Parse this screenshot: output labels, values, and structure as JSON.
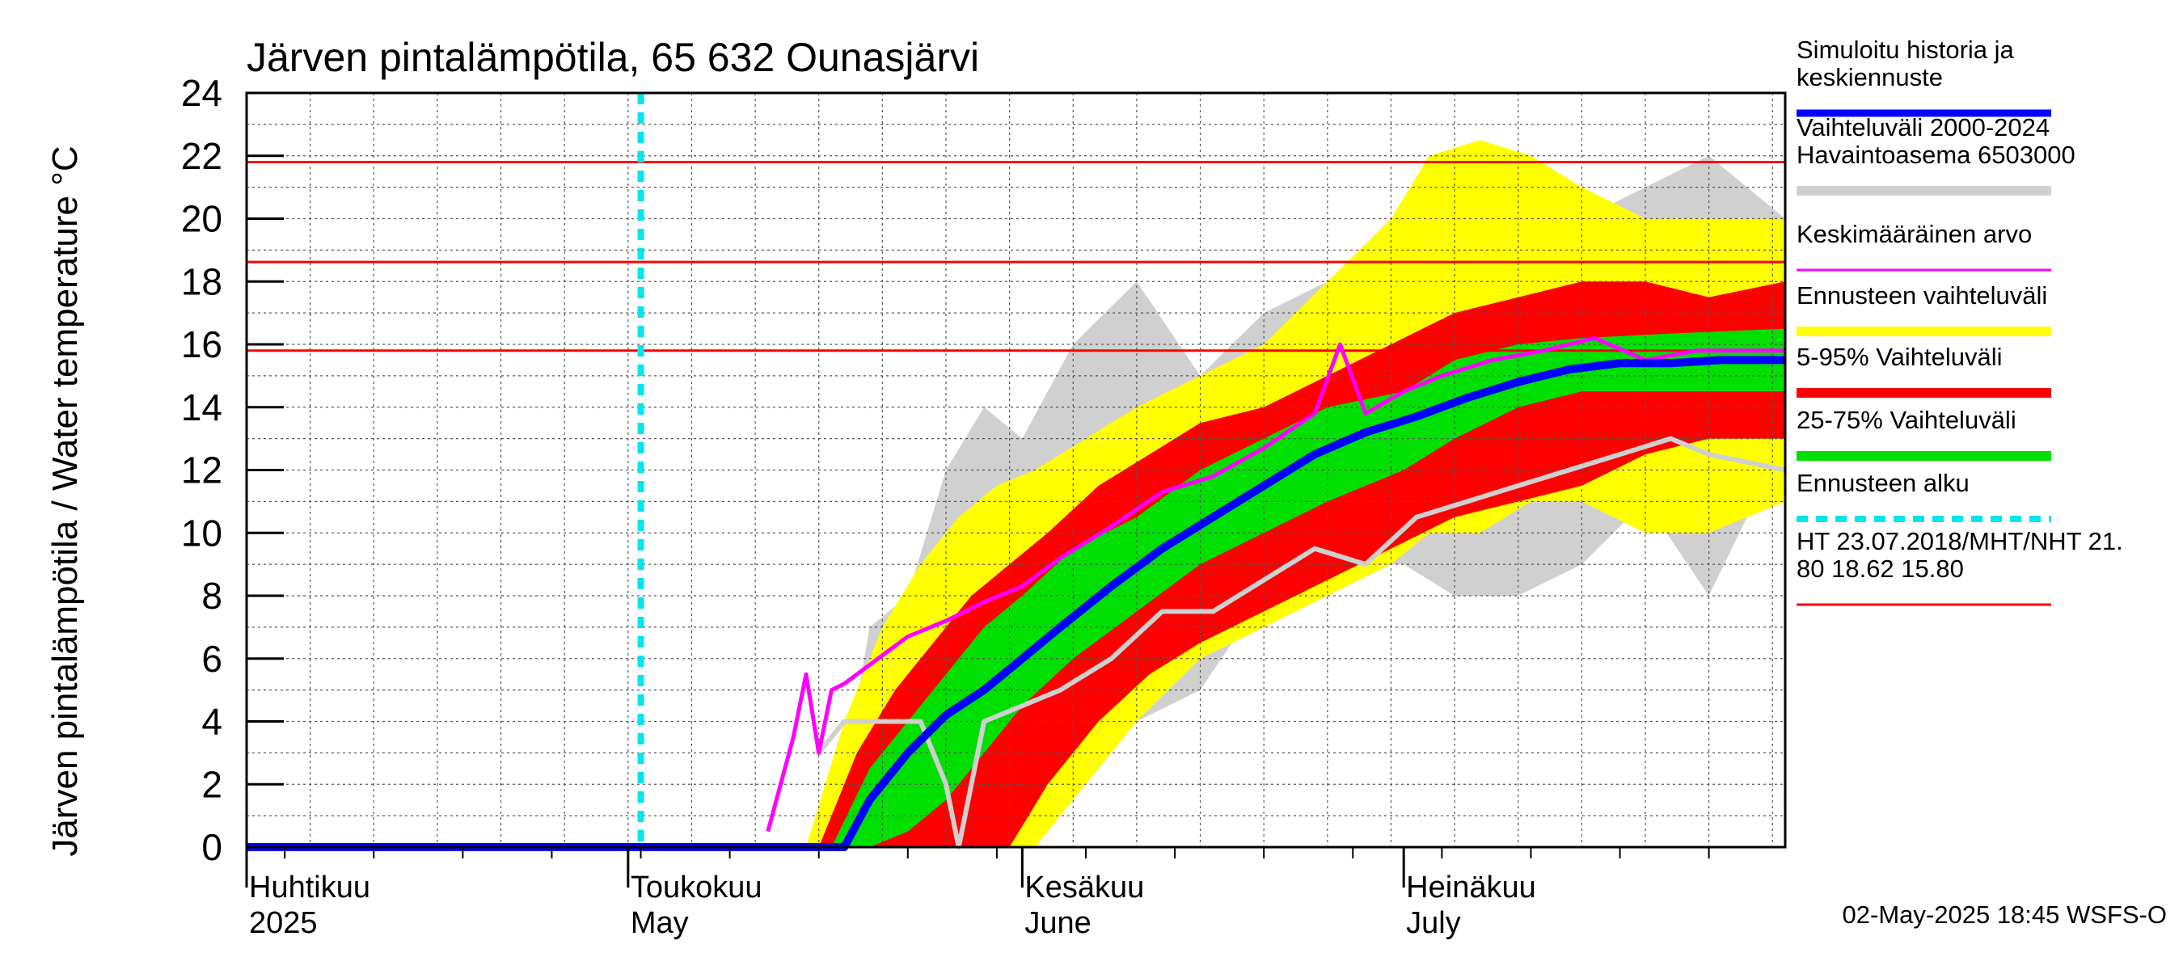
{
  "chart_data": {
    "type": "area",
    "title": "Järven pintalämpötila, 65 632 Ounasjärvi",
    "ylabel": "Järven pintalämpötila / Water temperature °C",
    "ylim": [
      0,
      24
    ],
    "yticks": [
      0,
      2,
      4,
      6,
      8,
      10,
      12,
      14,
      16,
      18,
      20,
      22,
      24
    ],
    "xlim": [
      "2025-04-01",
      "2025-07-31"
    ],
    "x_unit": "date",
    "grid": true,
    "month_labels": [
      {
        "date": "2025-04-01",
        "fi": "Huhtikuu",
        "en": "2025"
      },
      {
        "date": "2025-05-01",
        "fi": "Toukokuu",
        "en": "May"
      },
      {
        "date": "2025-06-01",
        "fi": "Kesäkuu",
        "en": "June"
      },
      {
        "date": "2025-07-01",
        "fi": "Heinäkuu",
        "en": "July"
      }
    ],
    "forecast_start": "2025-05-02",
    "reference_lines": [
      21.8,
      18.62,
      15.8
    ],
    "footer": "02-May-2025 18:45 WSFS-O",
    "colors": {
      "history_range": "#d0d0d0",
      "forecast_range": "#ffff00",
      "p5_95": "#ff0000",
      "p25_75": "#00e000",
      "simulated": "#0000ff",
      "mean": "#ff00ff",
      "forecast_start": "#00e5ee",
      "reference": "#ff0000"
    },
    "legend": [
      {
        "label": "Simuloitu historia ja\nkeskiennuste",
        "color": "#0000ff",
        "kind": "line"
      },
      {
        "label": "Vaihteluväli 2000-2024\n Havaintoasema 6503000",
        "color": "#d0d0d0",
        "kind": "band"
      },
      {
        "label": "Keskimääräinen arvo",
        "color": "#ff00ff",
        "kind": "line"
      },
      {
        "label": "Ennusteen vaihteluväli",
        "color": "#ffff00",
        "kind": "band"
      },
      {
        "label": "5-95% Vaihteluväli",
        "color": "#ff0000",
        "kind": "band"
      },
      {
        "label": "25-75% Vaihteluväli",
        "color": "#00e000",
        "kind": "band"
      },
      {
        "label": "Ennusteen alku",
        "color": "#00e5ee",
        "kind": "dashed"
      },
      {
        "label": "HT 23.07.2018/MHT/NHT 21.\n80 18.62 15.80",
        "color": "#ff0000",
        "kind": "line"
      }
    ],
    "series": [
      {
        "name": "Vaihteluväli 2000-2024 Havaintoasema 6503000",
        "kind": "band",
        "x": [
          "2025-05-17",
          "2025-05-20",
          "2025-05-23",
          "2025-05-26",
          "2025-05-29",
          "2025-06-01",
          "2025-06-05",
          "2025-06-10",
          "2025-06-15",
          "2025-06-20",
          "2025-06-25",
          "2025-07-01",
          "2025-07-05",
          "2025-07-10",
          "2025-07-15",
          "2025-07-20",
          "2025-07-25",
          "2025-07-31"
        ],
        "low": [
          0,
          3,
          4,
          4,
          0,
          3,
          4,
          4,
          5,
          8,
          9,
          9,
          8,
          8,
          9,
          11,
          8,
          13
        ],
        "high": [
          0,
          7,
          8,
          12,
          14,
          13,
          16,
          18,
          15,
          17,
          18,
          18,
          19,
          20,
          20,
          21,
          22,
          20
        ]
      },
      {
        "name": "Ennusteen vaihteluväli",
        "kind": "band",
        "x": [
          "2025-05-15",
          "2025-05-18",
          "2025-05-21",
          "2025-05-24",
          "2025-05-27",
          "2025-05-30",
          "2025-06-02",
          "2025-06-06",
          "2025-06-10",
          "2025-06-15",
          "2025-06-20",
          "2025-06-25",
          "2025-06-30",
          "2025-07-03",
          "2025-07-07",
          "2025-07-11",
          "2025-07-15",
          "2025-07-20",
          "2025-07-25",
          "2025-07-31"
        ],
        "low": [
          0,
          0,
          0,
          0,
          0,
          0,
          0,
          2,
          4,
          6,
          7,
          8,
          9,
          10,
          10,
          11,
          11,
          10,
          10,
          11
        ],
        "high": [
          0,
          4,
          7,
          9,
          10.5,
          11.5,
          12,
          13,
          14,
          15,
          16,
          18,
          20,
          22,
          22.5,
          22,
          21,
          20,
          20,
          20
        ]
      },
      {
        "name": "5-95% Vaihteluväli",
        "kind": "band",
        "x": [
          "2025-05-16",
          "2025-05-19",
          "2025-05-22",
          "2025-05-25",
          "2025-05-28",
          "2025-05-31",
          "2025-06-03",
          "2025-06-07",
          "2025-06-11",
          "2025-06-15",
          "2025-06-20",
          "2025-06-25",
          "2025-06-30",
          "2025-07-05",
          "2025-07-10",
          "2025-07-15",
          "2025-07-20",
          "2025-07-25",
          "2025-07-31"
        ],
        "low": [
          0,
          0,
          0,
          0,
          0,
          0,
          2,
          4,
          5.5,
          6.5,
          7.5,
          8.5,
          9.5,
          10.5,
          11,
          11.5,
          12.5,
          13,
          13
        ],
        "high": [
          0,
          3,
          5,
          6.5,
          8,
          9,
          10,
          11.5,
          12.5,
          13.5,
          14,
          15,
          16,
          17,
          17.5,
          18,
          18,
          17.5,
          18
        ]
      },
      {
        "name": "25-75% Vaihteluväli",
        "kind": "band",
        "x": [
          "2025-05-17",
          "2025-05-20",
          "2025-05-23",
          "2025-05-26",
          "2025-05-29",
          "2025-06-01",
          "2025-06-05",
          "2025-06-10",
          "2025-06-15",
          "2025-06-20",
          "2025-06-25",
          "2025-07-01",
          "2025-07-05",
          "2025-07-10",
          "2025-07-15",
          "2025-07-20",
          "2025-07-25",
          "2025-07-31"
        ],
        "low": [
          0,
          0,
          0.5,
          1.5,
          3,
          4.5,
          6,
          7.5,
          9,
          10,
          11,
          12,
          13,
          14,
          14.5,
          14.5,
          14.5,
          14.5
        ],
        "high": [
          0,
          2.5,
          4,
          5.5,
          7,
          8,
          9.5,
          10.5,
          12,
          13,
          14,
          14.5,
          15.5,
          16,
          16.2,
          16.3,
          16.4,
          16.5
        ]
      },
      {
        "name": "Simuloitu historia ja keskiennuste",
        "kind": "line",
        "x": [
          "2025-04-01",
          "2025-05-18",
          "2025-05-20",
          "2025-05-23",
          "2025-05-26",
          "2025-05-29",
          "2025-06-01",
          "2025-06-04",
          "2025-06-08",
          "2025-06-12",
          "2025-06-16",
          "2025-06-20",
          "2025-06-24",
          "2025-06-28",
          "2025-07-02",
          "2025-07-06",
          "2025-07-10",
          "2025-07-14",
          "2025-07-18",
          "2025-07-22",
          "2025-07-26",
          "2025-07-31"
        ],
        "y": [
          0,
          0,
          1.5,
          3,
          4.2,
          5,
          6,
          7,
          8.3,
          9.5,
          10.5,
          11.5,
          12.5,
          13.2,
          13.7,
          14.3,
          14.8,
          15.2,
          15.4,
          15.4,
          15.5,
          15.5
        ]
      },
      {
        "name": "Keskimääräinen arvo",
        "kind": "line",
        "x": [
          "2025-05-12",
          "2025-05-13",
          "2025-05-14",
          "2025-05-15",
          "2025-05-16",
          "2025-05-17",
          "2025-05-18",
          "2025-05-20",
          "2025-05-23",
          "2025-05-26",
          "2025-05-29",
          "2025-06-01",
          "2025-06-04",
          "2025-06-08",
          "2025-06-12",
          "2025-06-16",
          "2025-06-20",
          "2025-06-24",
          "2025-06-26",
          "2025-06-28",
          "2025-07-01",
          "2025-07-04",
          "2025-07-08",
          "2025-07-12",
          "2025-07-16",
          "2025-07-20",
          "2025-07-24",
          "2025-07-28",
          "2025-07-31"
        ],
        "y": [
          0.5,
          2,
          3.5,
          5.5,
          3,
          5,
          5.2,
          5.8,
          6.7,
          7.2,
          7.8,
          8.3,
          9.2,
          10.2,
          11.3,
          11.8,
          12.7,
          13.8,
          16,
          13.8,
          14.5,
          15,
          15.5,
          15.8,
          16.2,
          15.5,
          15.8,
          15.8,
          15.8
        ]
      },
      {
        "name": "Havaintoasema 6503000",
        "kind": "line",
        "x": [
          "2025-05-16",
          "2025-05-18",
          "2025-05-21",
          "2025-05-24",
          "2025-05-26",
          "2025-05-27",
          "2025-05-29",
          "2025-06-01",
          "2025-06-04",
          "2025-06-08",
          "2025-06-12",
          "2025-06-16",
          "2025-06-20",
          "2025-06-24",
          "2025-06-28",
          "2025-07-02",
          "2025-07-06",
          "2025-07-10",
          "2025-07-14",
          "2025-07-18",
          "2025-07-22",
          "2025-07-25",
          "2025-07-31"
        ],
        "y": [
          3,
          4,
          4,
          4,
          2,
          0,
          4,
          4.5,
          5,
          6,
          7.5,
          7.5,
          8.5,
          9.5,
          9,
          10.5,
          11,
          11.5,
          12,
          12.5,
          13,
          12.5,
          12
        ]
      }
    ]
  }
}
